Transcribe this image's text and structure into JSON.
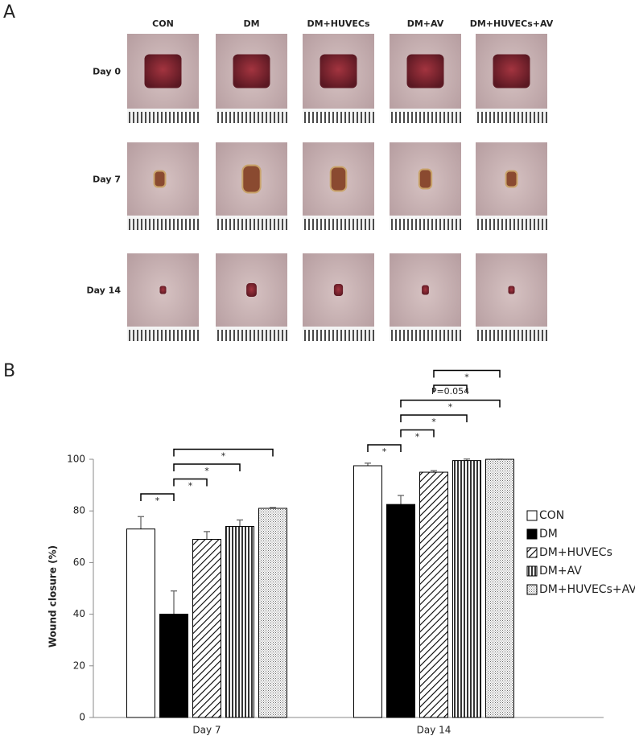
{
  "panel_a": {
    "label": "A",
    "columns": [
      "CON",
      "DM",
      "DM+HUVECs",
      "DM+AV",
      "DM+HUVECs+AV"
    ],
    "rows": [
      "Day 0",
      "Day 7",
      "Day 14"
    ]
  },
  "panel_b": {
    "label": "B"
  },
  "chart_data": {
    "type": "bar",
    "y_label": "Wound closure (%)",
    "categories": [
      "Day 7",
      "Day 14"
    ],
    "series": [
      {
        "name": "CON",
        "color": "#ffffff",
        "values": [
          73,
          97.5
        ],
        "errors": [
          4.8,
          1
        ]
      },
      {
        "name": "DM",
        "color": "#000000",
        "values": [
          40,
          82.5
        ],
        "errors": [
          9,
          3.5
        ]
      },
      {
        "name": "DM+HUVECs",
        "color": "#ffffff",
        "pattern": "diagonal",
        "values": [
          69,
          95
        ],
        "errors": [
          3,
          0.6
        ]
      },
      {
        "name": "DM+AV",
        "color": "#ffffff",
        "pattern": "vertical",
        "values": [
          74,
          99.5
        ],
        "errors": [
          2.5,
          0.6
        ]
      },
      {
        "name": "DM+HUVECs+AV",
        "color": "#ffffff",
        "pattern": "dots",
        "values": [
          81,
          100
        ],
        "errors": [
          0.3,
          0
        ]
      }
    ],
    "annotations": [
      {
        "category": "Day 7",
        "from": "CON",
        "to": "DM",
        "label": "*"
      },
      {
        "category": "Day 7",
        "from": "DM",
        "to": "DM+HUVECs",
        "label": "*"
      },
      {
        "category": "Day 7",
        "from": "DM",
        "to": "DM+AV",
        "label": "*"
      },
      {
        "category": "Day 7",
        "from": "DM",
        "to": "DM+HUVECs+AV",
        "label": "*"
      },
      {
        "category": "Day 14",
        "from": "CON",
        "to": "DM",
        "label": "*"
      },
      {
        "category": "Day 14",
        "from": "DM",
        "to": "DM+HUVECs",
        "label": "*"
      },
      {
        "category": "Day 14",
        "from": "DM",
        "to": "DM+AV",
        "label": "*"
      },
      {
        "category": "Day 14",
        "from": "DM",
        "to": "DM+HUVECs+AV",
        "label": "*"
      },
      {
        "category": "Day 14",
        "from": "DM+HUVECs",
        "to": "DM+AV",
        "label": "P=0.054"
      },
      {
        "category": "Day 14",
        "from": "DM+HUVECs",
        "to": "DM+HUVECs+AV",
        "label": "*"
      }
    ],
    "ylim": [
      0,
      100
    ],
    "yticks": [
      0,
      20,
      40,
      60,
      80,
      100
    ],
    "legend": "right"
  }
}
